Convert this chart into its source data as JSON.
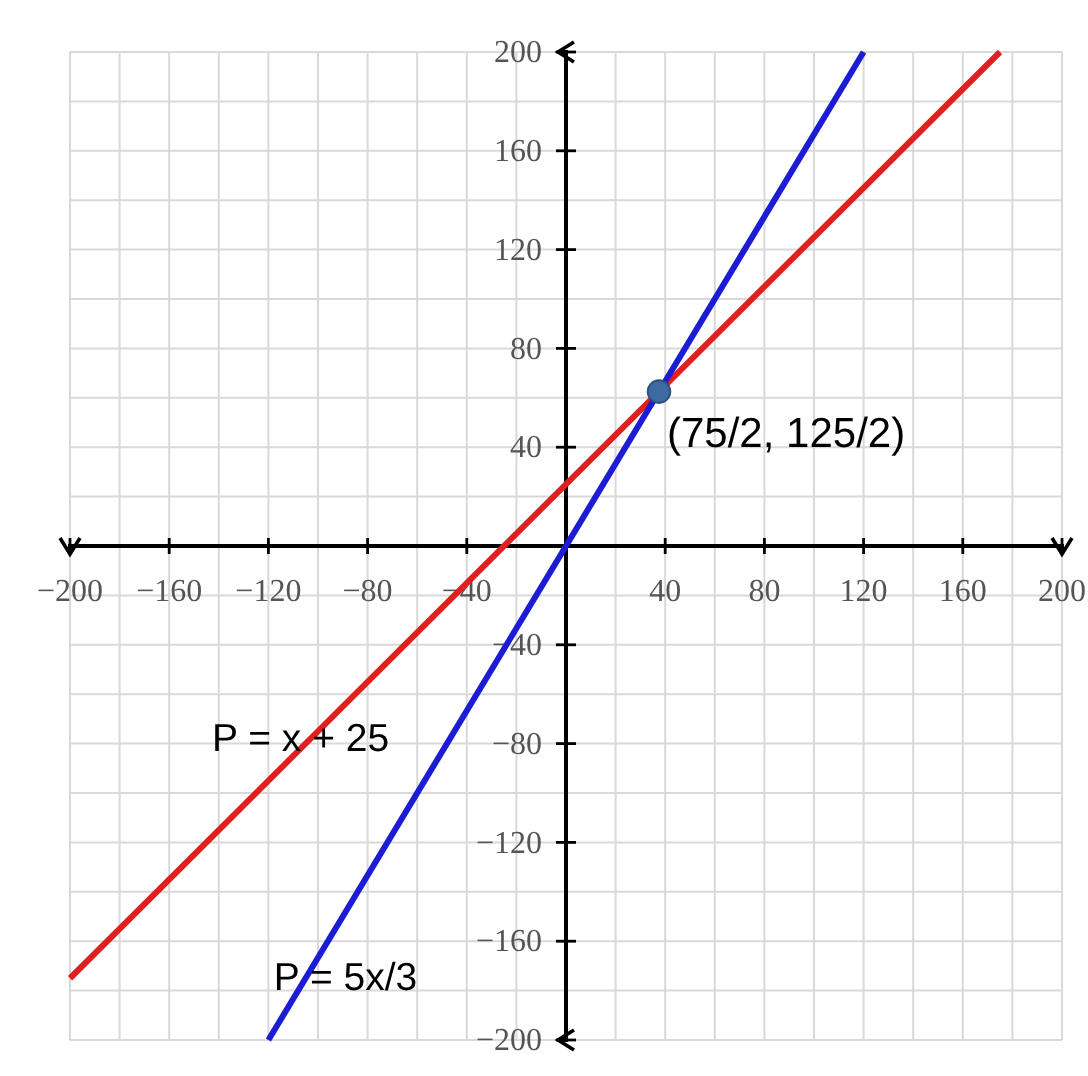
{
  "chart_data": {
    "type": "line",
    "xlim": [
      -200,
      200
    ],
    "ylim": [
      -200,
      200
    ],
    "xticks": [
      {
        "value": -200,
        "label": "−200"
      },
      {
        "value": -180,
        "label": null
      },
      {
        "value": -160,
        "label": "−160"
      },
      {
        "value": -140,
        "label": null
      },
      {
        "value": -120,
        "label": "−120"
      },
      {
        "value": -100,
        "label": null
      },
      {
        "value": -80,
        "label": "−80"
      },
      {
        "value": -60,
        "label": null
      },
      {
        "value": -40,
        "label": "−40"
      },
      {
        "value": -20,
        "label": null
      },
      {
        "value": 20,
        "label": null
      },
      40,
      {
        "value": 60,
        "label": null
      },
      80,
      {
        "value": 100,
        "label": null
      },
      120,
      {
        "value": 140,
        "label": null
      },
      160,
      {
        "value": 180,
        "label": null
      },
      200
    ],
    "yticks": [
      {
        "value": -200,
        "label": "−200"
      },
      {
        "value": -180,
        "label": null
      },
      {
        "value": -160,
        "label": "−160"
      },
      {
        "value": -140,
        "label": null
      },
      {
        "value": -120,
        "label": "−120"
      },
      {
        "value": -100,
        "label": null
      },
      {
        "value": -80,
        "label": "−80"
      },
      {
        "value": -60,
        "label": null
      },
      {
        "value": -40,
        "label": "−40"
      },
      {
        "value": -20,
        "label": null
      },
      {
        "value": 20,
        "label": null
      },
      40,
      {
        "value": 60,
        "label": null
      },
      80,
      {
        "value": 100,
        "label": null
      },
      120,
      {
        "value": 140,
        "label": null
      },
      160,
      {
        "value": 180,
        "label": null
      },
      200
    ],
    "grid": true,
    "series": [
      {
        "name": "P = x + 25",
        "color": "#e0201e",
        "x": [
          -200,
          175
        ],
        "values": [
          -175,
          200
        ]
      },
      {
        "name": "P = 5x/3",
        "color": "#1c1cd4",
        "x": [
          -120,
          120
        ],
        "values": [
          -200,
          200
        ]
      },
      {
        "type": "scatter",
        "color": "#3d6aa3",
        "x": [
          37.5
        ],
        "values": [
          62.5
        ],
        "marker": "circle"
      }
    ],
    "annotations": [
      {
        "text": "(75/2, 125/2)",
        "x": 37.5,
        "y": 62.5
      }
    ]
  }
}
